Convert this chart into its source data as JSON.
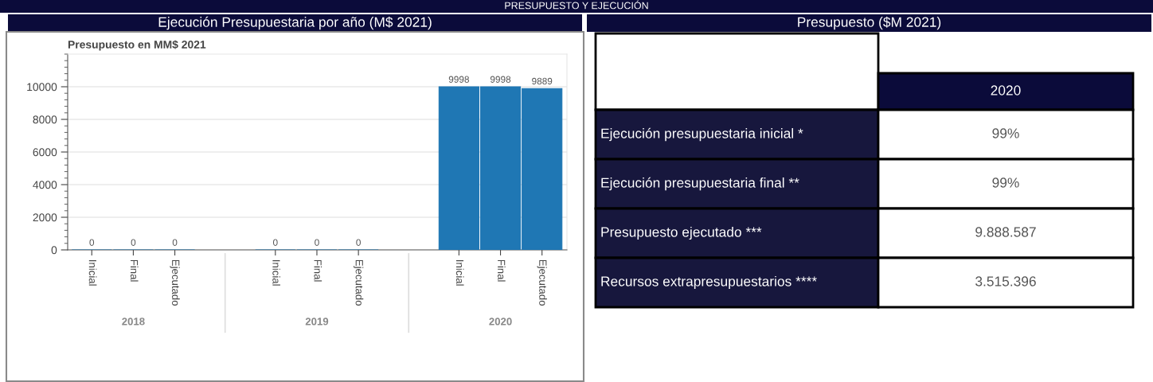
{
  "chart_data": [
    {
      "type": "bar",
      "title": "Ejecución Presupuestaria por año (M$ 2021)",
      "subtitle": "Presupuesto en MM$ 2021",
      "categories": [
        "Inicial",
        "Final",
        "Ejecutado",
        "Inicial",
        "Final",
        "Ejecutado",
        "Inicial",
        "Final",
        "Ejecutado"
      ],
      "values": [
        0,
        0,
        0,
        0,
        0,
        0,
        9998,
        9998,
        9889
      ],
      "color": "#1f77b4",
      "ylim": [
        0,
        12000
      ],
      "yticks": [
        0,
        2000,
        4000,
        6000,
        8000,
        10000
      ],
      "grid": "y",
      "data_labels": true,
      "annotations": [
        "PRESUPUESTO Y EJECUCIÓN",
        "2018",
        "2019",
        "2020"
      ]
    },
    {
      "type": "other",
      "title": "Presupuesto ($M 2021)",
      "categories": [
        "2020"
      ],
      "y_categories": [
        "Ejecución presupuestaria inicial *",
        "Ejecución presupuestaria final **",
        "Presupuesto ejecutado ***",
        "Recursos extrapresupuestarios ****"
      ],
      "cell_labels": [
        [
          "99%"
        ],
        [
          "99%"
        ],
        [
          "9.888.587"
        ],
        [
          "3.515.396"
        ]
      ]
    }
  ]
}
